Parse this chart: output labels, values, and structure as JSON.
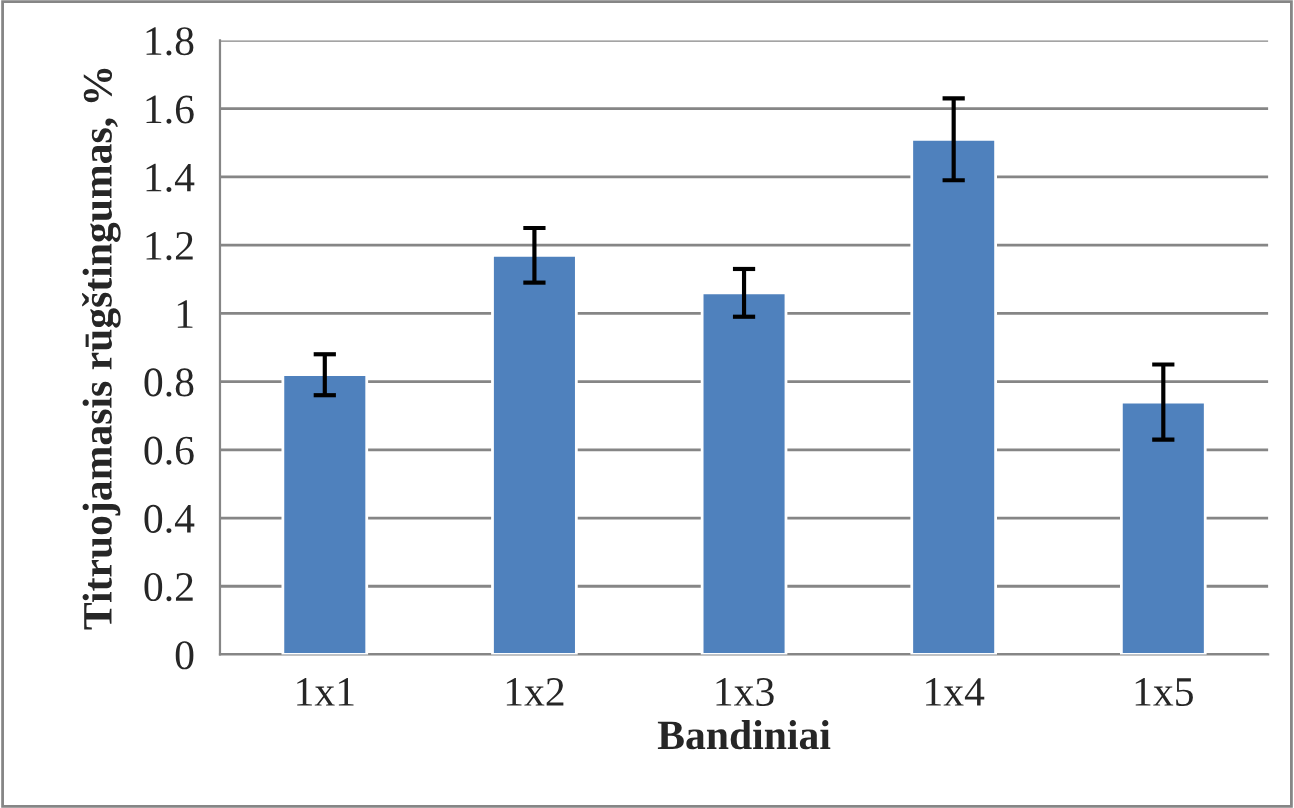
{
  "chart_data": {
    "type": "bar",
    "xlabel": "Bandiniai",
    "ylabel": "Titruojamasis rūgštingumas, %",
    "categories": [
      "1x1",
      "1x2",
      "1x3",
      "1x4",
      "1x5"
    ],
    "values": [
      0.82,
      1.17,
      1.06,
      1.51,
      0.74
    ],
    "errors": [
      0.06,
      0.08,
      0.07,
      0.12,
      0.11
    ],
    "color": "#4f81bd",
    "ylim": [
      0,
      1.8
    ],
    "yticks": [
      0,
      0.2,
      0.4,
      0.6,
      0.8,
      1,
      1.2,
      1.4,
      1.6,
      1.8
    ],
    "grid": "y",
    "legend": false
  }
}
